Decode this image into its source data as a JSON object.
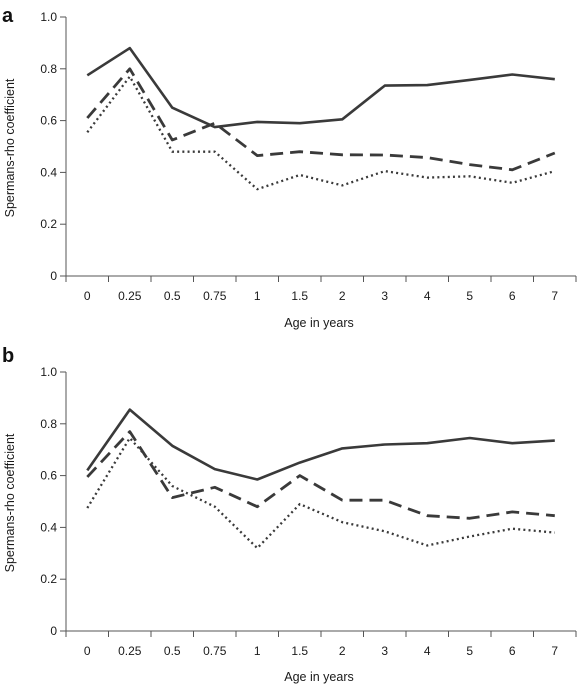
{
  "chart_data": [
    {
      "type": "line",
      "panel_label": "a",
      "xlabel": "Age in years",
      "ylabel": "Spermans-rho coefficient",
      "categories": [
        "0",
        "0.25",
        "0.5",
        "0.75",
        "1",
        "1.5",
        "2",
        "3",
        "4",
        "5",
        "6",
        "7"
      ],
      "ylim": [
        0,
        1.0
      ],
      "yticks": [
        "0",
        "0.2",
        "0.4",
        "0.6",
        "0.8",
        "1.0"
      ],
      "grid": false,
      "series": [
        {
          "style": "solid",
          "values": [
            0.775,
            0.88,
            0.65,
            0.575,
            0.595,
            0.59,
            0.605,
            0.735,
            0.737,
            0.757,
            0.778,
            0.76
          ]
        },
        {
          "style": "dashed",
          "values": [
            0.61,
            0.8,
            0.525,
            0.59,
            0.465,
            0.48,
            0.468,
            0.467,
            0.457,
            0.43,
            0.41,
            0.475
          ]
        },
        {
          "style": "dotted",
          "values": [
            0.555,
            0.77,
            0.48,
            0.48,
            0.335,
            0.39,
            0.35,
            0.405,
            0.38,
            0.385,
            0.36,
            0.405
          ]
        }
      ]
    },
    {
      "type": "line",
      "panel_label": "b",
      "xlabel": "Age in years",
      "ylabel": "Spermans-rho coefficient",
      "categories": [
        "0",
        "0.25",
        "0.5",
        "0.75",
        "1",
        "1.5",
        "2",
        "3",
        "4",
        "5",
        "6",
        "7"
      ],
      "ylim": [
        0,
        1.0
      ],
      "yticks": [
        "0",
        "0.2",
        "0.4",
        "0.6",
        "0.8",
        "1.0"
      ],
      "grid": false,
      "series": [
        {
          "style": "solid",
          "values": [
            0.62,
            0.855,
            0.715,
            0.625,
            0.585,
            0.65,
            0.705,
            0.72,
            0.725,
            0.745,
            0.725,
            0.735
          ]
        },
        {
          "style": "dashed",
          "values": [
            0.595,
            0.77,
            0.515,
            0.555,
            0.48,
            0.6,
            0.505,
            0.505,
            0.445,
            0.435,
            0.46,
            0.445
          ]
        },
        {
          "style": "dotted",
          "values": [
            0.475,
            0.745,
            0.56,
            0.48,
            0.32,
            0.49,
            0.42,
            0.385,
            0.33,
            0.365,
            0.395,
            0.38
          ]
        }
      ]
    }
  ],
  "colors": {
    "line": "#3a3a3a",
    "axis": "#555555",
    "text": "#1a1a1a"
  }
}
